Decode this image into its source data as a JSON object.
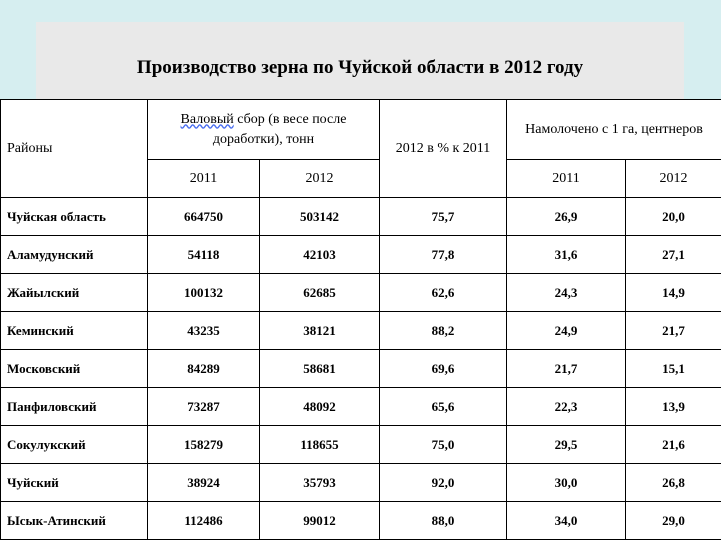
{
  "title": "Производство зерна по Чуйской области в 2012 году",
  "colors": {
    "top_band": "#d6eef0",
    "title_box": "#e9e9e9"
  },
  "headers": {
    "regions": "Районы",
    "gross_wavy": "Валовый",
    "gross_rest": " сбор (в весе после доработки), тонн",
    "percent": "2012 в % к 2011",
    "yield": "Намолочено с 1 га, центнеров",
    "y2011_a": "2011",
    "y2012_a": "2012",
    "y2011_b": "2011",
    "y2012_b": "2012"
  },
  "rows": [
    {
      "region": "Чуйская область",
      "gross_2011": "664750",
      "gross_2012": "503142",
      "percent": "75,7",
      "yield_2011": "26,9",
      "yield_2012": "20,0"
    },
    {
      "region": "Аламудунский",
      "gross_2011": "54118",
      "gross_2012": "42103",
      "percent": "77,8",
      "yield_2011": "31,6",
      "yield_2012": "27,1"
    },
    {
      "region": "Жайылский",
      "gross_2011": "100132",
      "gross_2012": "62685",
      "percent": "62,6",
      "yield_2011": "24,3",
      "yield_2012": "14,9"
    },
    {
      "region": "Кеминский",
      "gross_2011": "43235",
      "gross_2012": "38121",
      "percent": "88,2",
      "yield_2011": "24,9",
      "yield_2012": "21,7"
    },
    {
      "region": "Московский",
      "gross_2011": "84289",
      "gross_2012": "58681",
      "percent": "69,6",
      "yield_2011": "21,7",
      "yield_2012": "15,1"
    },
    {
      "region": "Панфиловский",
      "gross_2011": "73287",
      "gross_2012": "48092",
      "percent": "65,6",
      "yield_2011": "22,3",
      "yield_2012": "13,9"
    },
    {
      "region": "Сокулукский",
      "gross_2011": "158279",
      "gross_2012": "118655",
      "percent": "75,0",
      "yield_2011": "29,5",
      "yield_2012": "21,6"
    },
    {
      "region": "Чуйский",
      "gross_2011": "38924",
      "gross_2012": "35793",
      "percent": "92,0",
      "yield_2011": "30,0",
      "yield_2012": "26,8"
    },
    {
      "region": "Ысык-Атинский",
      "gross_2011": "112486",
      "gross_2012": "99012",
      "percent": "88,0",
      "yield_2011": "34,0",
      "yield_2012": "29,0"
    }
  ]
}
